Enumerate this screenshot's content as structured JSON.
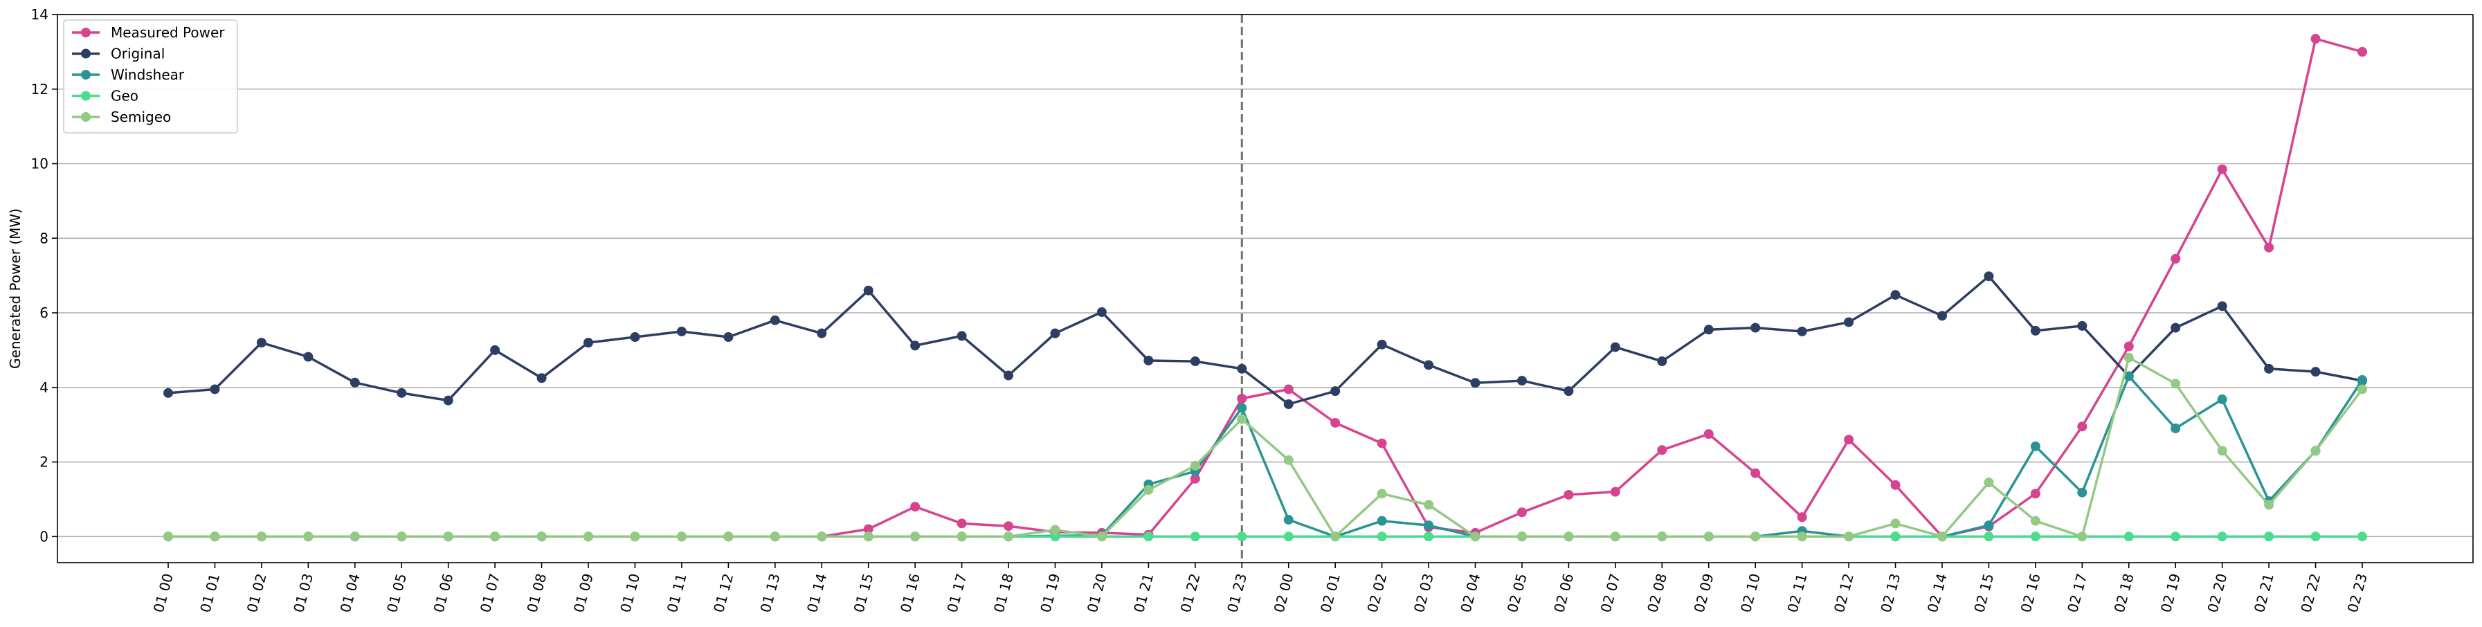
{
  "chart_data": {
    "type": "line",
    "title": "",
    "xlabel": "",
    "ylabel": "Generated Power (MW)",
    "ylim": [
      -0.7,
      14
    ],
    "yticks": [
      0,
      2,
      4,
      6,
      8,
      10,
      12,
      14
    ],
    "grid": "horizontal",
    "legend_position": "top-left",
    "vline_at": "01 23",
    "categories": [
      "01 00",
      "01 01",
      "01 02",
      "01 03",
      "01 04",
      "01 05",
      "01 06",
      "01 07",
      "01 08",
      "01 09",
      "01 10",
      "01 11",
      "01 12",
      "01 13",
      "01 14",
      "01 15",
      "01 16",
      "01 17",
      "01 18",
      "01 19",
      "01 20",
      "01 21",
      "01 22",
      "01 23",
      "02 00",
      "02 01",
      "02 02",
      "02 03",
      "02 04",
      "02 05",
      "02 06",
      "02 07",
      "02 08",
      "02 09",
      "02 10",
      "02 11",
      "02 12",
      "02 13",
      "02 14",
      "02 15",
      "02 16",
      "02 17",
      "02 18",
      "02 19",
      "02 20",
      "02 21",
      "02 22",
      "02 23"
    ],
    "series": [
      {
        "name": "Measured Power",
        "color": "#d6438f",
        "values": [
          0,
          0,
          0,
          0,
          0,
          0,
          0,
          0,
          0,
          0,
          0,
          0,
          0,
          0,
          0,
          0.2,
          0.8,
          0.35,
          0.28,
          0.12,
          0.1,
          0.05,
          1.55,
          3.7,
          3.95,
          3.05,
          2.5,
          0.25,
          0.1,
          0.65,
          1.12,
          1.2,
          2.32,
          2.75,
          1.7,
          0.52,
          2.6,
          1.38,
          0,
          0.27,
          1.15,
          2.95,
          5.1,
          7.45,
          9.85,
          7.75,
          13.35,
          13.0
        ]
      },
      {
        "name": "Original",
        "color": "#2c3e62",
        "values": [
          3.85,
          3.95,
          5.2,
          4.82,
          4.13,
          3.85,
          3.65,
          5.0,
          4.25,
          5.2,
          5.35,
          5.5,
          5.35,
          5.8,
          5.45,
          6.6,
          5.12,
          5.38,
          4.32,
          5.45,
          6.02,
          4.72,
          4.7,
          4.5,
          3.55,
          3.9,
          5.15,
          4.6,
          4.12,
          4.18,
          3.9,
          5.08,
          4.7,
          5.55,
          5.6,
          5.5,
          5.75,
          6.48,
          5.92,
          6.98,
          5.52,
          5.65,
          4.3,
          5.6,
          6.18,
          4.5,
          4.42,
          4.18
        ]
      },
      {
        "name": "Windshear",
        "color": "#2a9393",
        "values": [
          0,
          0,
          0,
          0,
          0,
          0,
          0,
          0,
          0,
          0,
          0,
          0,
          0,
          0,
          0,
          0,
          0,
          0,
          0,
          0.02,
          0.03,
          1.4,
          1.75,
          3.45,
          0.45,
          0,
          0.42,
          0.3,
          0,
          0,
          0,
          0,
          0,
          0,
          0,
          0.15,
          0,
          0,
          0,
          0.3,
          2.42,
          1.18,
          4.3,
          2.9,
          3.68,
          0.95,
          2.3,
          4.2
        ]
      },
      {
        "name": "Geo",
        "color": "#4bdc8f",
        "values": [
          0,
          0,
          0,
          0,
          0,
          0,
          0,
          0,
          0,
          0,
          0,
          0,
          0,
          0,
          0,
          0,
          0,
          0,
          0,
          0,
          0,
          0,
          0,
          0,
          0,
          0,
          0,
          0,
          0,
          0,
          0,
          0,
          0,
          0,
          0,
          0,
          0,
          0,
          0,
          0,
          0,
          0,
          0,
          0,
          0,
          0,
          0,
          0
        ]
      },
      {
        "name": "Semigeo",
        "color": "#93c985",
        "values": [
          0,
          0,
          0,
          0,
          0,
          0,
          0,
          0,
          0,
          0,
          0,
          0,
          0,
          0,
          0,
          0,
          0,
          0,
          0,
          0.18,
          0,
          1.25,
          1.9,
          3.15,
          2.05,
          0,
          1.15,
          0.85,
          0,
          0,
          0,
          0,
          0,
          0,
          0,
          0,
          0,
          0.35,
          0,
          1.45,
          0.42,
          0,
          4.8,
          4.1,
          2.3,
          0.85,
          2.3,
          3.95
        ]
      }
    ]
  }
}
